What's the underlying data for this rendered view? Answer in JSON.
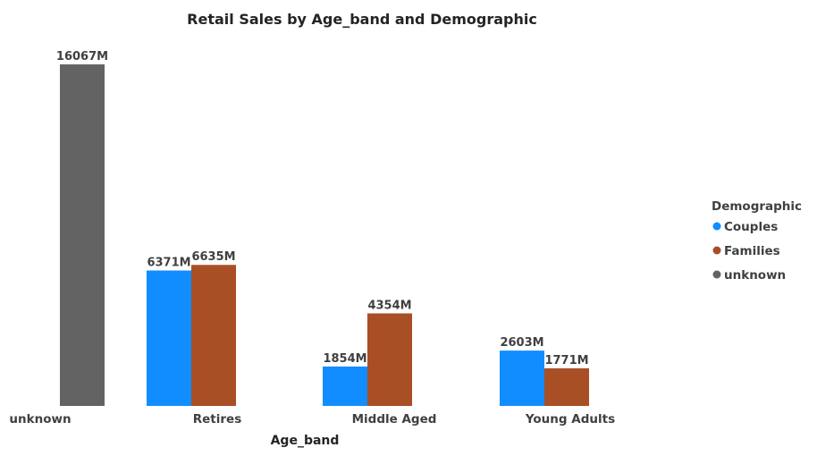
{
  "chart_data": {
    "type": "bar",
    "title": "Retail Sales by Age_band and Demographic",
    "xlabel": "Age_band",
    "ylabel": "",
    "categories": [
      "unknown",
      "Retires",
      "Middle Aged",
      "Young Adults"
    ],
    "series": [
      {
        "name": "Couples",
        "color": "#118DFF",
        "values": [
          null,
          6371,
          1854,
          2603
        ],
        "labels": [
          null,
          "6371M",
          "1854M",
          "2603M"
        ]
      },
      {
        "name": "Families",
        "color": "#A94F26",
        "values": [
          null,
          6635,
          4354,
          1771
        ],
        "labels": [
          null,
          "6635M",
          "4354M",
          "1771M"
        ]
      },
      {
        "name": "unknown",
        "color": "#636363",
        "values": [
          16067,
          null,
          null,
          null
        ],
        "labels": [
          "16067M",
          null,
          null,
          null
        ]
      }
    ],
    "ylim": [
      0,
      16067
    ],
    "grid": false,
    "legend": {
      "title": "Demographic",
      "position": "right"
    }
  }
}
